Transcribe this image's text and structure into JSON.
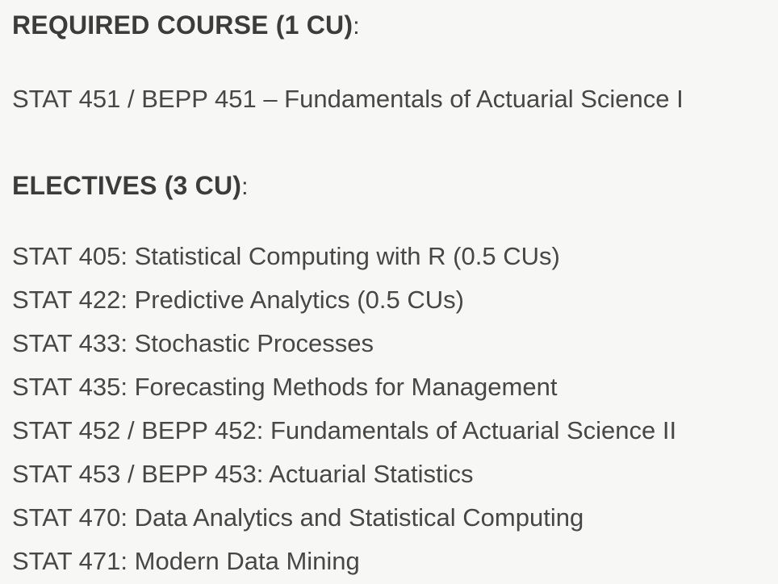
{
  "page": {
    "background_color": "#f7f7f5",
    "heading_color": "#3c3c3c",
    "body_text_color": "#474747"
  },
  "required_section": {
    "heading": "REQUIRED COURSE (1 CU)",
    "heading_colon": ":",
    "course": "STAT 451 / BEPP 451 – Fundamentals of Actuarial Science I"
  },
  "electives_section": {
    "heading": "ELECTIVES (3 CU)",
    "heading_colon": ":",
    "courses": [
      "STAT 405: Statistical Computing with R (0.5 CUs)",
      "STAT 422: Predictive Analytics (0.5 CUs)",
      "STAT 433: Stochastic Processes",
      "STAT 435: Forecasting Methods for Management",
      "STAT 452 / BEPP 452: Fundamentals of Actuarial Science II",
      "STAT 453 / BEPP 453: Actuarial Statistics",
      "STAT 470: Data Analytics and Statistical Computing",
      "STAT 471: Modern Data Mining"
    ]
  }
}
